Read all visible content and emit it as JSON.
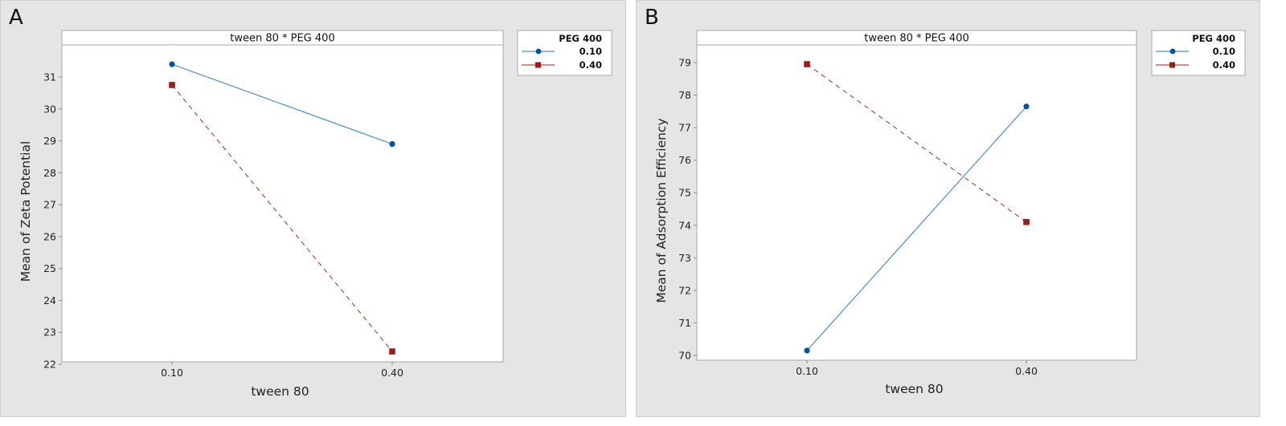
{
  "chart_data": [
    {
      "panel": "A",
      "type": "line",
      "title": "tween 80 * PEG 400",
      "xlabel": "tween 80",
      "ylabel": "Mean of Zeta Potential",
      "categories": [
        "0.10",
        "0.40"
      ],
      "yticks": [
        22,
        23,
        24,
        25,
        26,
        27,
        28,
        29,
        30,
        31
      ],
      "ylim": [
        21.8,
        31.9
      ],
      "legend_title": "PEG 400",
      "legend_position": "right",
      "grid": false,
      "series": [
        {
          "name": "0.10",
          "values": [
            31.4,
            28.9
          ],
          "color": "#0054a6",
          "line_color": "#4d8fd0",
          "marker": "circle",
          "dash": "solid"
        },
        {
          "name": "0.40",
          "values": [
            30.75,
            22.4
          ],
          "color": "#9b1c1c",
          "line_color": "#b04848",
          "marker": "square",
          "dash": "dashed"
        }
      ]
    },
    {
      "panel": "B",
      "type": "line",
      "title": "tween 80 * PEG 400",
      "xlabel": "tween 80",
      "ylabel": "Mean of Adsorption Efficiency",
      "categories": [
        "0.10",
        "0.40"
      ],
      "yticks": [
        70,
        71,
        72,
        73,
        74,
        75,
        76,
        77,
        78,
        79
      ],
      "ylim": [
        69.6,
        79.5
      ],
      "legend_title": "PEG 400",
      "legend_position": "right",
      "grid": false,
      "series": [
        {
          "name": "0.10",
          "values": [
            70.15,
            77.65
          ],
          "color": "#0054a6",
          "line_color": "#4d8fd0",
          "marker": "circle",
          "dash": "solid"
        },
        {
          "name": "0.40",
          "values": [
            78.95,
            74.1
          ],
          "color": "#9b1c1c",
          "line_color": "#b04848",
          "marker": "square",
          "dash": "dashed"
        }
      ]
    }
  ],
  "panels": [
    {
      "letter": "A"
    },
    {
      "letter": "B"
    }
  ]
}
